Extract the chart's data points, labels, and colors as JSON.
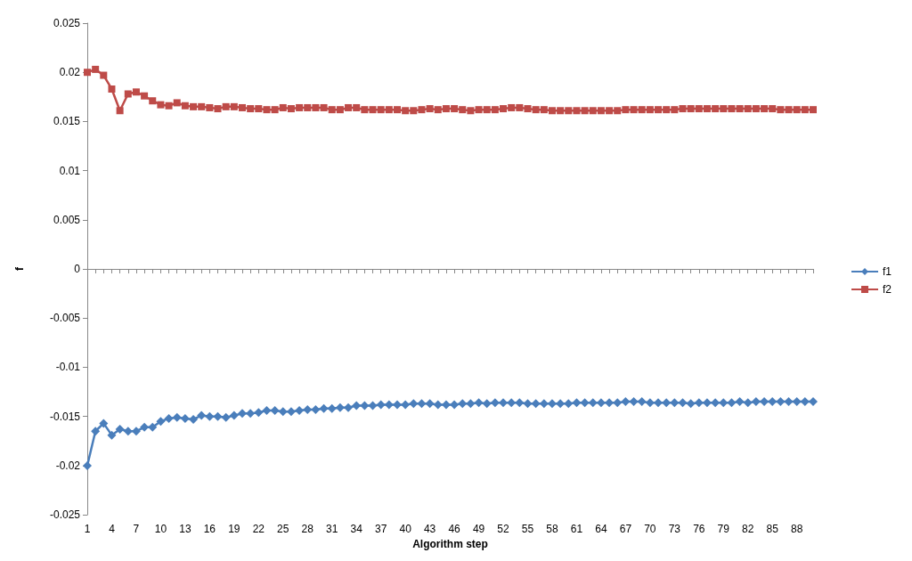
{
  "chart_data": {
    "type": "line",
    "xlabel": "Algorithm step",
    "ylabel": "f",
    "categories": [
      "1",
      null,
      null,
      "4",
      null,
      null,
      "7",
      null,
      null,
      "10",
      null,
      null,
      "13",
      null,
      null,
      "16",
      null,
      null,
      "19",
      null,
      null,
      "22",
      null,
      null,
      "25",
      null,
      null,
      "28",
      null,
      null,
      "31",
      null,
      null,
      "34",
      null,
      null,
      "37",
      null,
      null,
      "40",
      null,
      null,
      "43",
      null,
      null,
      "46",
      null,
      null,
      "49",
      null,
      null,
      "52",
      null,
      null,
      "55",
      null,
      null,
      "58",
      null,
      null,
      "61",
      null,
      null,
      "64",
      null,
      null,
      "67",
      null,
      null,
      "70",
      null,
      null,
      "73",
      null,
      null,
      "76",
      null,
      null,
      "79",
      null,
      null,
      "82",
      null,
      null,
      "85",
      null,
      null,
      "88",
      null,
      null
    ],
    "series": [
      {
        "name": "f1",
        "color": "#4a7ebb",
        "marker": "diamond",
        "values": [
          -0.02,
          -0.0165,
          -0.0157,
          -0.0169,
          -0.0163,
          -0.0165,
          -0.0165,
          -0.0161,
          -0.0161,
          -0.0155,
          -0.0152,
          -0.0151,
          -0.0152,
          -0.0153,
          -0.0149,
          -0.015,
          -0.015,
          -0.0151,
          -0.0149,
          -0.0147,
          -0.0147,
          -0.0146,
          -0.0144,
          -0.0144,
          -0.0145,
          -0.0145,
          -0.0144,
          -0.0143,
          -0.0143,
          -0.0142,
          -0.0142,
          -0.0141,
          -0.0141,
          -0.0139,
          -0.0139,
          -0.0139,
          -0.0138,
          -0.0138,
          -0.0138,
          -0.0138,
          -0.0137,
          -0.0137,
          -0.0137,
          -0.0138,
          -0.0138,
          -0.0138,
          -0.0137,
          -0.0137,
          -0.0136,
          -0.0137,
          -0.0136,
          -0.0136,
          -0.0136,
          -0.0136,
          -0.0137,
          -0.0137,
          -0.0137,
          -0.0137,
          -0.0137,
          -0.0137,
          -0.0136,
          -0.0136,
          -0.0136,
          -0.0136,
          -0.0136,
          -0.0136,
          -0.0135,
          -0.0135,
          -0.0135,
          -0.0136,
          -0.0136,
          -0.0136,
          -0.0136,
          -0.0136,
          -0.0137,
          -0.0136,
          -0.0136,
          -0.0136,
          -0.0136,
          -0.0136,
          -0.0135,
          -0.0136,
          -0.0135,
          -0.0135,
          -0.0135,
          -0.0135,
          -0.0135,
          -0.0135,
          -0.0135,
          -0.0135
        ]
      },
      {
        "name": "f2",
        "color": "#be4b48",
        "marker": "square",
        "values": [
          0.02,
          0.0203,
          0.0197,
          0.0183,
          0.0161,
          0.0178,
          0.018,
          0.0176,
          0.0171,
          0.0167,
          0.0166,
          0.0169,
          0.0166,
          0.0165,
          0.0165,
          0.0164,
          0.0163,
          0.0165,
          0.0165,
          0.0164,
          0.0163,
          0.0163,
          0.0162,
          0.0162,
          0.0164,
          0.0163,
          0.0164,
          0.0164,
          0.0164,
          0.0164,
          0.0162,
          0.0162,
          0.0164,
          0.0164,
          0.0162,
          0.0162,
          0.0162,
          0.0162,
          0.0162,
          0.0161,
          0.0161,
          0.0162,
          0.0163,
          0.0162,
          0.0163,
          0.0163,
          0.0162,
          0.0161,
          0.0162,
          0.0162,
          0.0162,
          0.0163,
          0.0164,
          0.0164,
          0.0163,
          0.0162,
          0.0162,
          0.0161,
          0.0161,
          0.0161,
          0.0161,
          0.0161,
          0.0161,
          0.0161,
          0.0161,
          0.0161,
          0.0162,
          0.0162,
          0.0162,
          0.0162,
          0.0162,
          0.0162,
          0.0162,
          0.0163,
          0.0163,
          0.0163,
          0.0163,
          0.0163,
          0.0163,
          0.0163,
          0.0163,
          0.0163,
          0.0163,
          0.0163,
          0.0163,
          0.0162,
          0.0162,
          0.0162,
          0.0162,
          0.0162
        ]
      }
    ],
    "ylim": [
      -0.025,
      0.025
    ],
    "yticks": [
      -0.025,
      -0.02,
      -0.015,
      -0.01,
      -0.005,
      0,
      0.005,
      0.01,
      0.015,
      0.02,
      0.025
    ],
    "legend": "right",
    "line_style": "solid"
  }
}
